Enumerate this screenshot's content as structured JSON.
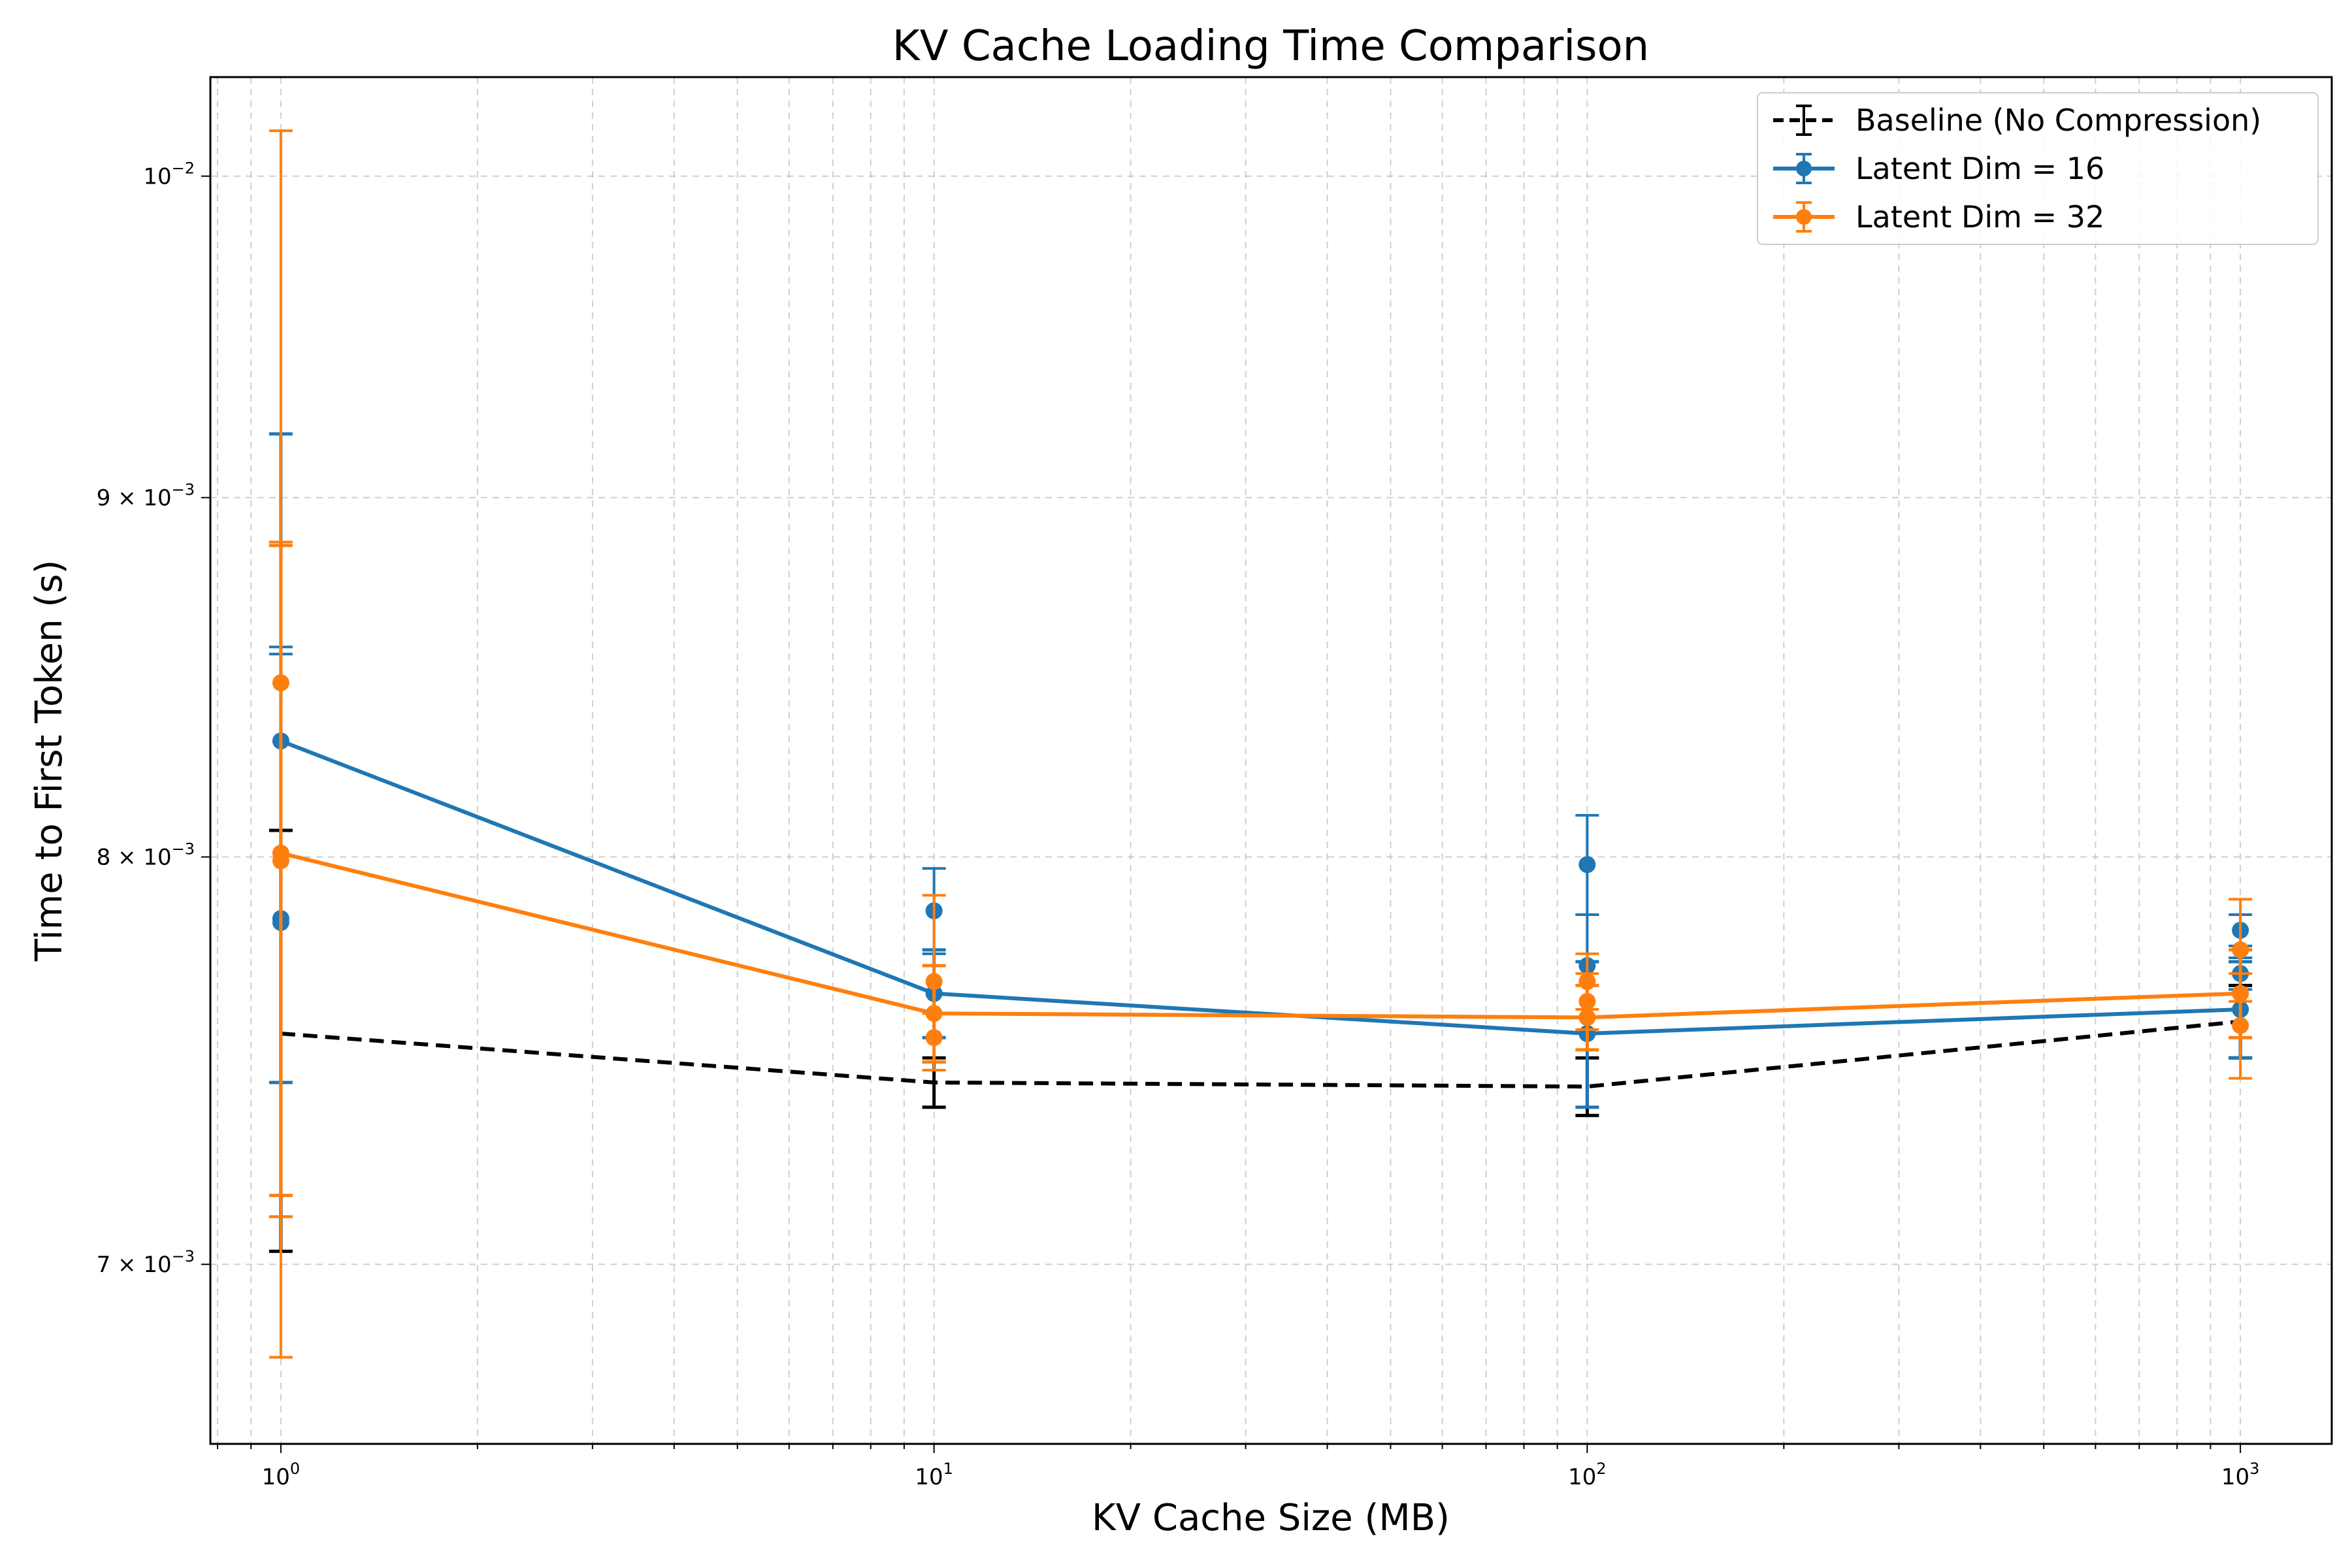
{
  "chart_data": {
    "type": "line",
    "title": "KV Cache Loading Time Comparison",
    "xlabel": "KV Cache Size (MB)",
    "ylabel": "Time to First Token (s)",
    "x_scale": "log",
    "y_scale": "log",
    "xlim": [
      0.78,
      1380
    ],
    "ylim": [
      0.0066,
      0.01033
    ],
    "x_ticks": [
      {
        "value": 1,
        "base": "10",
        "exp": "0"
      },
      {
        "value": 10,
        "base": "10",
        "exp": "1"
      },
      {
        "value": 100,
        "base": "10",
        "exp": "2"
      },
      {
        "value": 1000,
        "base": "10",
        "exp": "3"
      }
    ],
    "y_ticks": [
      {
        "value": 0.007,
        "mant": "7 × 10",
        "exp": "−3"
      },
      {
        "value": 0.008,
        "mant": "8 × 10",
        "exp": "−3"
      },
      {
        "value": 0.009,
        "mant": "9 × 10",
        "exp": "−3"
      },
      {
        "value": 0.01,
        "mant": "10",
        "exp": "−2"
      }
    ],
    "grid": true,
    "legend_position": "top-right",
    "series": [
      {
        "name": "Baseline (No Compression)",
        "color": "#000000",
        "style": "dashed",
        "marker": "none",
        "x": [
          1,
          10,
          100,
          1000
        ],
        "y": [
          0.00755,
          0.00743,
          0.00742,
          0.00758
        ],
        "yerr": [
          0.00052,
          6e-05,
          7e-05,
          9e-05
        ],
        "extra_points": []
      },
      {
        "name": "Latent Dim = 16",
        "color": "#1f77b4",
        "style": "solid",
        "marker": "circle",
        "x": [
          1,
          10,
          100,
          1000
        ],
        "y": [
          0.00831,
          0.00765,
          0.00755,
          0.00761
        ],
        "yerr": [
          0.00088,
          0.00011,
          0.00018,
          0.00012
        ],
        "extra_points": [
          {
            "x": 1,
            "y": 0.00784,
            "err": 0.00073
          },
          {
            "x": 1,
            "y": 0.00783,
            "err": 0.00072
          },
          {
            "x": 10,
            "y": 0.00786,
            "err": 0.00011
          },
          {
            "x": 100,
            "y": 0.00798,
            "err": 0.00013
          },
          {
            "x": 100,
            "y": 0.00772,
            "err": 0.00013
          },
          {
            "x": 1000,
            "y": 0.00781,
            "err": 4e-05
          },
          {
            "x": 1000,
            "y": 0.0077,
            "err": 4e-05
          }
        ]
      },
      {
        "name": "Latent Dim = 32",
        "color": "#ff7f0e",
        "style": "solid",
        "marker": "circle",
        "x": [
          1,
          10,
          100,
          1000
        ],
        "y": [
          0.00801,
          0.0076,
          0.00759,
          0.00765
        ],
        "yerr": [
          0.00085,
          0.00012,
          8e-05,
          0.00011
        ],
        "extra_points": [
          {
            "x": 1,
            "y": 0.00847,
            "err": 0.00168
          },
          {
            "x": 1,
            "y": 0.00799,
            "err": 0.00088
          },
          {
            "x": 10,
            "y": 0.00768,
            "err": 0.00022
          },
          {
            "x": 10,
            "y": 0.00754,
            "err": 6e-05
          },
          {
            "x": 100,
            "y": 0.00768,
            "err": 7e-05
          },
          {
            "x": 100,
            "y": 0.00763,
            "err": 7e-05
          },
          {
            "x": 1000,
            "y": 0.00776,
            "err": 0.00013
          },
          {
            "x": 1000,
            "y": 0.00757,
            "err": 0.00013
          }
        ]
      }
    ]
  }
}
